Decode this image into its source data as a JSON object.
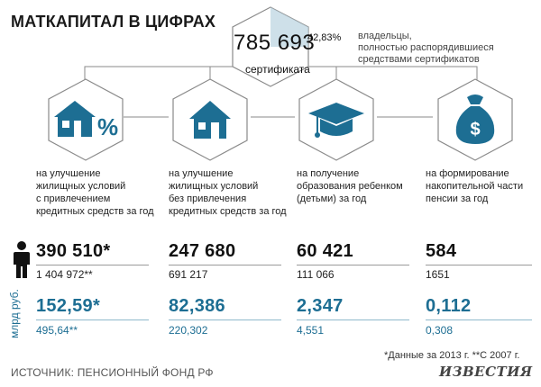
{
  "title": "МАТКАПИТАЛ В ЦИФРАХ",
  "total": {
    "value": "785 693",
    "label": "сертификата",
    "percent": "42,83%",
    "percent_note_1": "владельцы,",
    "percent_note_2": "полностью распорядившиеся",
    "percent_note_3": "средствами сертификатов"
  },
  "colors": {
    "accent": "#1d6e93",
    "icon_fill": "#1d6e93",
    "hex_stroke": "#8a8a8a"
  },
  "categories": [
    {
      "icon": "house-percent-icon",
      "text_lines": [
        "на улучшение",
        "жилищных условий",
        "с привлечением",
        "кредитных средств за год"
      ],
      "count": "390 510*",
      "count_total": "1 404 972**",
      "amount": "152,59*",
      "amount_total": "495,64**"
    },
    {
      "icon": "house-icon",
      "text_lines": [
        "на улучшение",
        "жилищных условий",
        "без привлечения",
        "кредитных средств за год"
      ],
      "count": "247 680",
      "count_total": "691 217",
      "amount": "82,386",
      "amount_total": "220,302"
    },
    {
      "icon": "graduation-cap-icon",
      "text_lines": [
        "на получение",
        "образования ребенком",
        "(детьми) за год"
      ],
      "count": "60 421",
      "count_total": "111 066",
      "amount": "2,347",
      "amount_total": "4,551"
    },
    {
      "icon": "money-bag-icon",
      "text_lines": [
        "на формирование",
        "накопительной части",
        "пенсии за год"
      ],
      "count": "584",
      "count_total": "1651",
      "amount": "0,112",
      "amount_total": "0,308"
    }
  ],
  "person_icon": "person-icon",
  "unit_label": "млрд руб.",
  "footnote": "*Данные за 2013 г.   **С 2007 г.",
  "source": "ИСТОЧНИК: ПЕНСИОННЫЙ ФОНД РФ",
  "logo": "ИЗВЕСТИЯ"
}
